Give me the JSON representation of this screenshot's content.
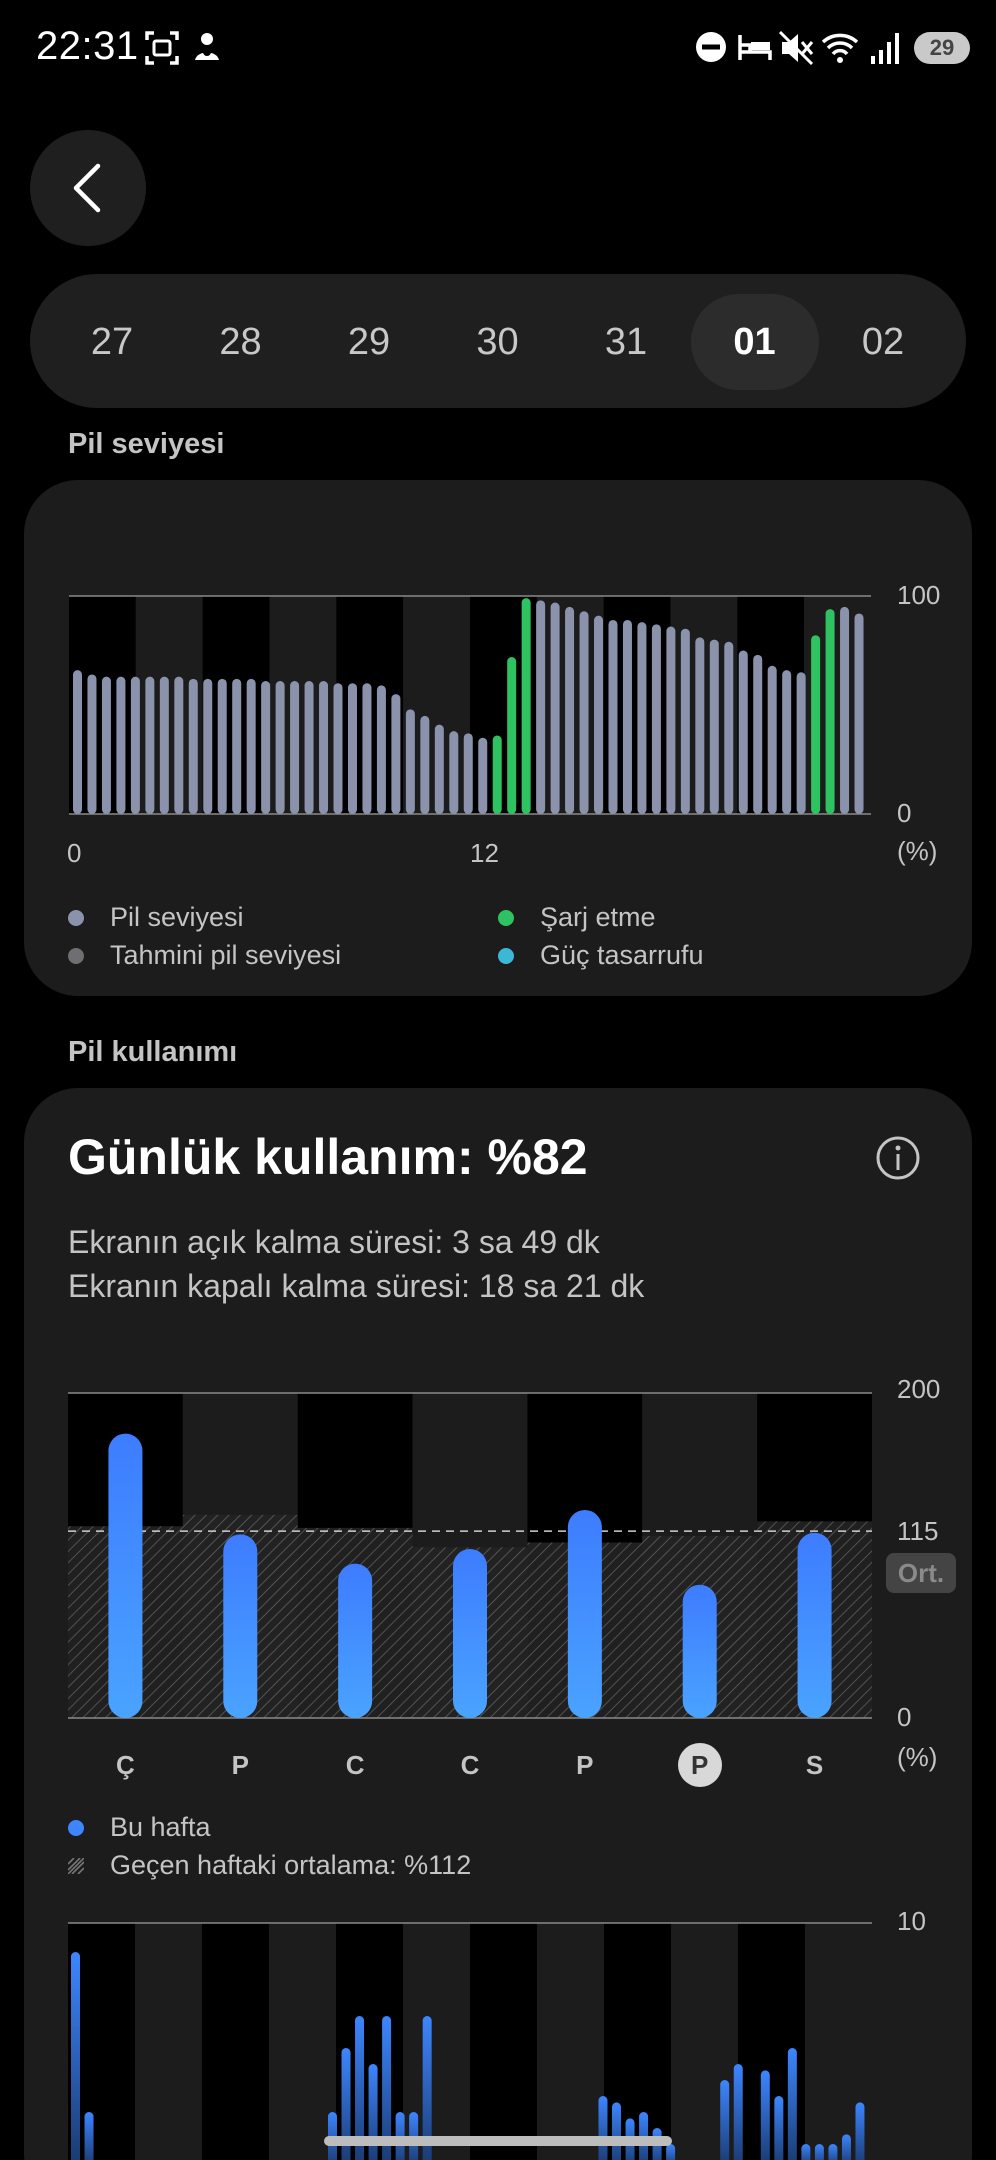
{
  "status_bar": {
    "time": "22:31",
    "battery": "29",
    "icons": [
      "screenshot-icon",
      "notification-app-icon",
      "dnd-icon",
      "sleep-icon",
      "mute-icon",
      "wifi-icon",
      "signal-icon",
      "battery-icon"
    ]
  },
  "nav": {
    "back_icon": "chevron-left-icon"
  },
  "dates": {
    "items": [
      "27",
      "28",
      "29",
      "30",
      "31",
      "01",
      "02"
    ],
    "selected": "01"
  },
  "battery_level": {
    "section_title": "Pil seviyesi",
    "y_top": "100",
    "y_bottom": "0",
    "unit": "(%)",
    "x_start": "0",
    "x_mid": "12",
    "legend": {
      "level": "Pil seviyesi",
      "estimated": "Tahmini pil seviyesi",
      "charging": "Şarj etme",
      "power_saving": "Güç tasarrufu"
    },
    "colors": {
      "level": "#8a93ab",
      "estimated": "#6e6e73",
      "charging": "#2ec260",
      "power_saving": "#3db7d6"
    }
  },
  "battery_usage": {
    "section_title": "Pil kullanımı",
    "title": "Günlük kullanım: %82",
    "screen_on": "Ekranın açık kalma süresi: 3 sa 49 dk",
    "screen_off": "Ekranın kapalı kalma süresi: 18 sa 21 dk",
    "y_top": "200",
    "y_avg": "115",
    "y_bottom": "0",
    "unit": "(%)",
    "avg_badge": "Ort.",
    "days": [
      "Ç",
      "P",
      "C",
      "C",
      "P",
      "P",
      "S"
    ],
    "selected_day_index": 5,
    "legend": {
      "this_week": "Bu hafta",
      "last_week_avg": "Geçen haftaki ortalama: %112"
    },
    "hourly_y_top": "10",
    "colors": {
      "bar": "#3d86ff"
    }
  },
  "chart_data": [
    {
      "type": "bar",
      "title": "Pil seviyesi",
      "xlabel": "",
      "ylabel": "(%)",
      "ylim": [
        0,
        100
      ],
      "x_ticks": [
        "0",
        "12"
      ],
      "series": [
        {
          "name": "Pil seviyesi",
          "values": [
            66,
            64,
            63,
            63,
            63,
            63,
            63,
            63,
            62,
            62,
            62,
            62,
            62,
            61,
            61,
            61,
            61,
            61,
            60,
            60,
            60,
            59,
            55,
            48,
            45,
            41,
            38,
            37,
            35,
            36,
            72,
            99,
            98,
            97,
            95,
            93,
            91,
            89,
            89,
            88,
            87,
            86,
            85,
            81,
            80,
            79,
            75,
            73,
            68,
            66,
            65,
            82,
            94,
            95,
            92
          ],
          "charging": [
            29,
            30,
            31,
            51,
            52
          ]
        }
      ],
      "grid": true
    },
    {
      "type": "bar",
      "title": "Günlük kullanım: %82",
      "ylabel": "(%)",
      "ylim": [
        0,
        200
      ],
      "reference_line": 115,
      "categories": [
        "Ç",
        "P",
        "C",
        "C",
        "P",
        "P",
        "S"
      ],
      "series": [
        {
          "name": "Bu hafta",
          "values": [
            175,
            113,
            95,
            104,
            128,
            82,
            114
          ]
        },
        {
          "name": "Geçen haftaki ortalama: %112",
          "values": [
            118,
            125,
            117,
            105,
            108,
            112,
            121
          ]
        }
      ]
    },
    {
      "type": "bar",
      "ylim": [
        0,
        10
      ],
      "values": [
        6.5,
        1.5,
        0,
        0,
        0,
        0,
        0,
        0,
        0,
        0,
        0,
        0,
        0,
        0,
        0,
        0,
        0,
        0,
        0,
        1.5,
        3.5,
        4.5,
        3,
        4.5,
        1.5,
        1.5,
        4.5,
        0,
        0,
        0,
        0,
        0,
        0,
        0,
        0,
        0,
        0,
        0,
        0,
        2,
        1.8,
        1.3,
        1.5,
        1,
        0.5,
        0,
        0,
        0,
        2.5,
        3,
        0,
        2.8,
        2,
        3.5,
        0.5,
        0.5,
        0.5,
        0.8,
        1.8
      ]
    }
  ]
}
